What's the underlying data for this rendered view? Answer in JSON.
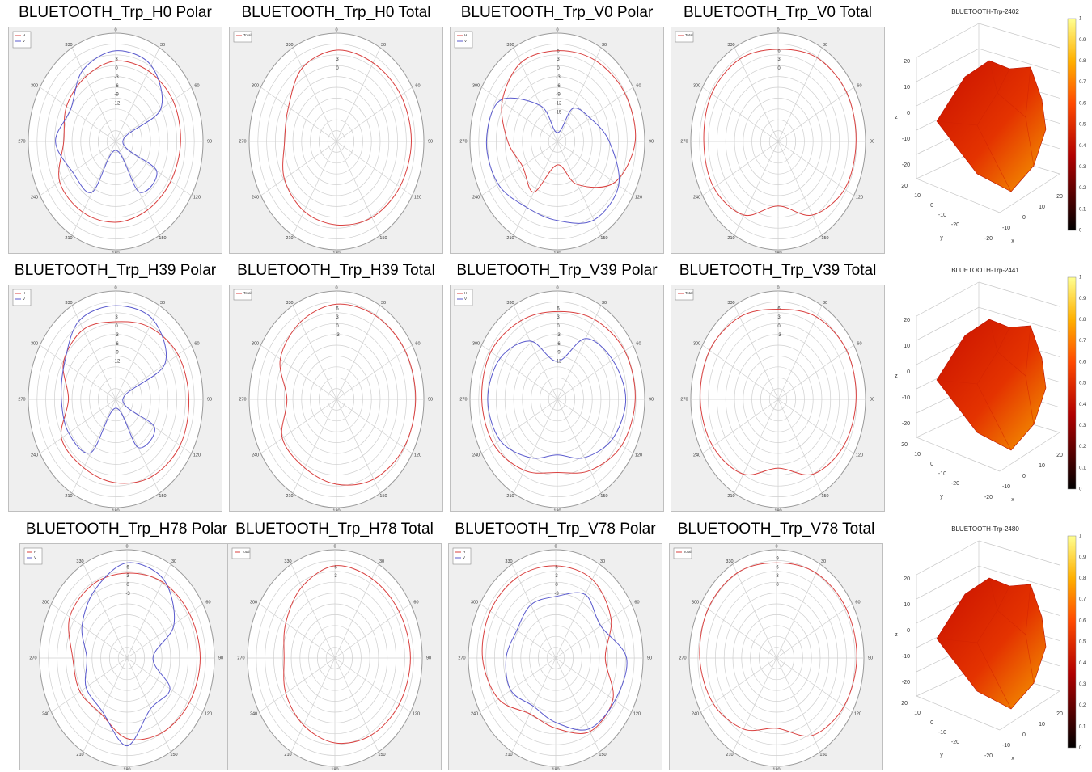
{
  "figure": {
    "colors": {
      "h": "#d9403f",
      "v": "#5a5acd",
      "total": "#d9403f",
      "grid": "#cfcfcf",
      "panel_bg": "#efefef"
    },
    "angle_labels": [
      "0",
      "30",
      "60",
      "90",
      "120",
      "150",
      "180",
      "210",
      "240",
      "270",
      "300",
      "330"
    ]
  },
  "chart_data": [
    {
      "type": "polar",
      "title": "BLUETOOTH_Trp_H0 Polar",
      "legend": [
        "H",
        "V"
      ],
      "radial_ticks": [
        "3",
        "0",
        "-3",
        "-6",
        "-9",
        "-12"
      ],
      "series": [
        {
          "name": "H",
          "theta": [
            0,
            30,
            60,
            90,
            120,
            150,
            180,
            210,
            240,
            270,
            300,
            330
          ],
          "r": [
            2.5,
            2.8,
            3.0,
            2.5,
            2.0,
            2.0,
            2.6,
            2.9,
            2.4,
            -3,
            -1,
            0.5
          ]
        },
        {
          "name": "V",
          "theta": [
            0,
            30,
            60,
            90,
            120,
            150,
            180,
            210,
            240,
            270,
            300,
            330
          ],
          "r": [
            6,
            5,
            -3,
            -22,
            -5,
            -5,
            -22,
            -5,
            -4,
            0.5,
            -3,
            3
          ]
        }
      ]
    },
    {
      "type": "polar",
      "title": "BLUETOOTH_Trp_H0 Total",
      "legend": [
        "Total"
      ],
      "radial_ticks": [
        "3",
        "0"
      ],
      "series": [
        {
          "name": "Total",
          "theta": [
            0,
            30,
            60,
            90,
            120,
            150,
            180,
            210,
            240,
            270,
            300,
            330
          ],
          "r": [
            6.2,
            6.0,
            6.5,
            6.7,
            6.0,
            5.0,
            3.5,
            2.5,
            0.5,
            -3,
            -1.5,
            4.0
          ]
        }
      ]
    },
    {
      "type": "polar",
      "title": "BLUETOOTH_Trp_V0 Polar",
      "legend": [
        "H",
        "V"
      ],
      "radial_ticks": [
        "6",
        "3",
        "0",
        "-3",
        "-6",
        "-9",
        "-12",
        "-15"
      ],
      "series": [
        {
          "name": "H",
          "theta": [
            0,
            30,
            60,
            90,
            120,
            150,
            180,
            210,
            240,
            270,
            300,
            330
          ],
          "r": [
            6,
            7,
            8,
            8,
            3,
            -8,
            -17,
            -5,
            -8,
            -4,
            2,
            6
          ]
        },
        {
          "name": "V",
          "theta": [
            0,
            30,
            60,
            90,
            120,
            150,
            180,
            210,
            240,
            270,
            300,
            330
          ],
          "r": [
            -22,
            -12,
            -9,
            -3,
            5,
            6,
            2,
            1,
            4,
            5,
            3,
            -11
          ]
        }
      ]
    },
    {
      "type": "polar",
      "title": "BLUETOOTH_Trp_V0 Total",
      "legend": [
        "Total"
      ],
      "radial_ticks": [
        "6",
        "3",
        "0"
      ],
      "series": [
        {
          "name": "Total",
          "theta": [
            0,
            30,
            60,
            90,
            120,
            150,
            180,
            210,
            240,
            270,
            300,
            330
          ],
          "r": [
            6.5,
            8.0,
            8.5,
            8.0,
            7.5,
            4.0,
            -3.0,
            4.0,
            6.5,
            6.5,
            7.5,
            7.5
          ]
        }
      ]
    },
    {
      "type": "polar",
      "title": "BLUETOOTH_Trp_H39 Polar",
      "legend": [
        "H",
        "V"
      ],
      "radial_ticks": [
        "3",
        "0",
        "-3",
        "-6",
        "-9",
        "-12"
      ],
      "series": [
        {
          "name": "H",
          "theta": [
            0,
            30,
            60,
            90,
            120,
            150,
            180,
            210,
            240,
            270,
            300,
            330
          ],
          "r": [
            1.5,
            3.5,
            5.5,
            6.0,
            6.5,
            5.5,
            3.5,
            2.0,
            1.5,
            -5,
            0.5,
            2.5
          ]
        },
        {
          "name": "V",
          "theta": [
            0,
            30,
            60,
            90,
            120,
            150,
            180,
            210,
            240,
            270,
            300,
            330
          ],
          "r": [
            7,
            6.5,
            -1,
            -22,
            -6,
            -6,
            -22,
            -4,
            -2,
            -2,
            0,
            6
          ]
        }
      ]
    },
    {
      "type": "polar",
      "title": "BLUETOOTH_Trp_H39 Total",
      "legend": [
        "Total"
      ],
      "radial_ticks": [
        "6",
        "3",
        "0",
        "-3"
      ],
      "series": [
        {
          "name": "Total",
          "theta": [
            0,
            30,
            60,
            90,
            120,
            150,
            180,
            210,
            240,
            270,
            300,
            330
          ],
          "r": [
            7.5,
            8.0,
            8.5,
            8.5,
            8.0,
            6.5,
            4.0,
            2.0,
            1.5,
            -4.0,
            2.5,
            5.5
          ]
        }
      ]
    },
    {
      "type": "polar",
      "title": "BLUETOOTH_Trp_V39 Polar",
      "legend": [
        "H",
        "V"
      ],
      "radial_ticks": [
        "6",
        "3",
        "0",
        "-3",
        "-6",
        "-9",
        "-12"
      ],
      "series": [
        {
          "name": "H",
          "theta": [
            0,
            30,
            60,
            90,
            120,
            150,
            180,
            210,
            240,
            270,
            300,
            330
          ],
          "r": [
            5,
            6.5,
            8,
            8,
            6.5,
            3,
            0,
            3,
            6,
            7,
            7.5,
            6
          ]
        },
        {
          "name": "V",
          "theta": [
            0,
            30,
            60,
            90,
            120,
            150,
            180,
            210,
            240,
            270,
            300,
            330
          ],
          "r": [
            -12,
            -1,
            2,
            4,
            2,
            -2,
            -6,
            -2,
            3,
            4.5,
            3,
            -2
          ]
        }
      ]
    },
    {
      "type": "polar",
      "title": "BLUETOOTH_Trp_V39 Total",
      "legend": [
        "Total"
      ],
      "radial_ticks": [
        "6",
        "3",
        "0",
        "-3"
      ],
      "series": [
        {
          "name": "Total",
          "theta": [
            0,
            30,
            60,
            90,
            120,
            150,
            180,
            210,
            240,
            270,
            300,
            330
          ],
          "r": [
            5.8,
            7.5,
            8.5,
            8.0,
            7.0,
            4.5,
            -1.5,
            4.5,
            7.0,
            8.0,
            8.5,
            7.5
          ]
        }
      ]
    },
    {
      "type": "polar",
      "title": "BLUETOOTH_Trp_H78 Polar",
      "legend": [
        "H",
        "V"
      ],
      "radial_ticks": [
        "6",
        "3",
        "0",
        "-3"
      ],
      "series": [
        {
          "name": "H",
          "theta": [
            0,
            30,
            60,
            90,
            120,
            150,
            180,
            210,
            240,
            270,
            300,
            330
          ],
          "r": [
            4,
            5,
            5.5,
            6,
            5.5,
            4.5,
            2.5,
            -3,
            -2,
            -2,
            3,
            4
          ]
        },
        {
          "name": "V",
          "theta": [
            0,
            30,
            60,
            90,
            120,
            150,
            180,
            210,
            240,
            270,
            300,
            330
          ],
          "r": [
            7.5,
            6,
            -2,
            -14,
            -4,
            -5,
            5,
            -4,
            -5,
            -8,
            -3,
            2
          ]
        }
      ]
    },
    {
      "type": "polar",
      "title": "BLUETOOTH_Trp_H78 Total",
      "legend": [
        "Total"
      ],
      "radial_ticks": [
        "6",
        "3"
      ],
      "series": [
        {
          "name": "Total",
          "theta": [
            0,
            30,
            60,
            90,
            120,
            150,
            180,
            210,
            240,
            270,
            300,
            330
          ],
          "r": [
            6.5,
            6.3,
            6.5,
            7.0,
            6.5,
            5.5,
            4.0,
            1.5,
            -1.0,
            -3.5,
            -1.0,
            3.0
          ]
        }
      ]
    },
    {
      "type": "polar",
      "title": "BLUETOOTH_Trp_V78 Polar",
      "legend": [
        "H",
        "V"
      ],
      "radial_ticks": [
        "6",
        "3",
        "0",
        "-3"
      ],
      "series": [
        {
          "name": "H",
          "theta": [
            0,
            30,
            60,
            90,
            120,
            150,
            180,
            210,
            240,
            270,
            300,
            330
          ],
          "r": [
            6.5,
            6.0,
            2.0,
            -4.0,
            3.0,
            4.0,
            -1.0,
            -3.0,
            3.0,
            6.0,
            7.0,
            7.0
          ]
        },
        {
          "name": "V",
          "theta": [
            0,
            30,
            60,
            90,
            120,
            150,
            180,
            210,
            240,
            270,
            300,
            330
          ],
          "r": [
            -4,
            0,
            -3,
            5,
            4,
            3,
            -3,
            -6,
            -3,
            -4,
            -6,
            -4
          ]
        }
      ]
    },
    {
      "type": "polar",
      "title": "BLUETOOTH_Trp_V78 Total",
      "legend": [
        "Total"
      ],
      "radial_ticks": [
        "9",
        "6",
        "3",
        "0"
      ],
      "series": [
        {
          "name": "Total",
          "theta": [
            0,
            30,
            60,
            90,
            120,
            150,
            180,
            210,
            240,
            270,
            300,
            330
          ],
          "r": [
            7.5,
            8.5,
            9.0,
            9.0,
            8.0,
            5.5,
            -1.0,
            3.0,
            6.0,
            7.5,
            8.5,
            8.5
          ]
        }
      ]
    },
    {
      "type": "surface3d",
      "title": "BLUETOOTH-Trp-2402",
      "xlabel": "x",
      "ylabel": "y",
      "zlabel": "z",
      "z_ticks": [
        "20",
        "10",
        "0",
        "-10",
        "-20"
      ],
      "y_ticks": [
        "20",
        "10",
        "0",
        "-10",
        "-20"
      ],
      "x_ticks": [
        "-20",
        "-10",
        "0",
        "10",
        "20"
      ],
      "colorbar_ticks": [
        "1",
        "0.9",
        "0.8",
        "0.7",
        "0.6",
        "0.5",
        "0.4",
        "0.3",
        "0.2",
        "0.1",
        "0"
      ]
    },
    {
      "type": "surface3d",
      "title": "BLUETOOTH-Trp-2441",
      "xlabel": "x",
      "ylabel": "y",
      "zlabel": "z",
      "z_ticks": [
        "20",
        "10",
        "0",
        "-10",
        "-20"
      ],
      "y_ticks": [
        "20",
        "10",
        "0",
        "-10",
        "-20"
      ],
      "x_ticks": [
        "-20",
        "-10",
        "0",
        "10",
        "20"
      ],
      "colorbar_ticks": [
        "1",
        "0.9",
        "0.8",
        "0.7",
        "0.6",
        "0.5",
        "0.4",
        "0.3",
        "0.2",
        "0.1",
        "0"
      ]
    },
    {
      "type": "surface3d",
      "title": "BLUETOOTH-Trp-2480",
      "xlabel": "x",
      "ylabel": "y",
      "zlabel": "z",
      "z_ticks": [
        "20",
        "10",
        "0",
        "-10",
        "-20"
      ],
      "y_ticks": [
        "20",
        "10",
        "0",
        "-10",
        "-20"
      ],
      "x_ticks": [
        "-20",
        "-10",
        "0",
        "10",
        "20"
      ],
      "colorbar_ticks": [
        "1",
        "0.9",
        "0.8",
        "0.7",
        "0.6",
        "0.5",
        "0.4",
        "0.3",
        "0.2",
        "0.1",
        "0"
      ]
    }
  ]
}
